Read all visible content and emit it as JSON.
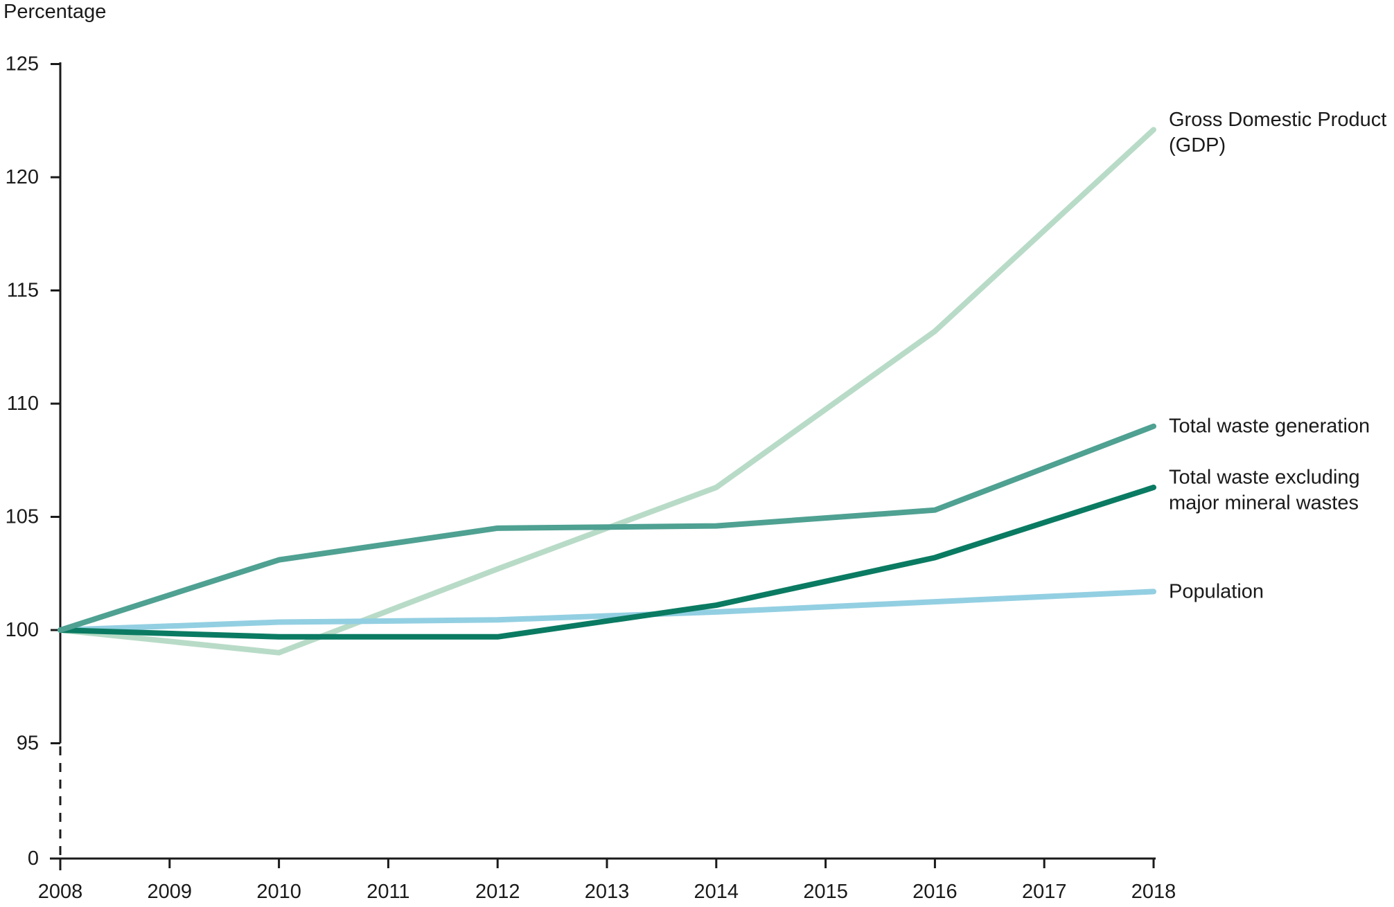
{
  "page": {
    "y_axis_title": "Percentage"
  },
  "chart_data": {
    "type": "line",
    "title": "Percentage",
    "xlabel": "",
    "ylabel": "Percentage",
    "x": [
      2008,
      2010,
      2012,
      2014,
      2016,
      2018
    ],
    "x_axis_ticks": [
      2008,
      2009,
      2010,
      2011,
      2012,
      2013,
      2014,
      2015,
      2016,
      2017,
      2018
    ],
    "y_axis_ticks": [
      125,
      120,
      115,
      110,
      105,
      100,
      95,
      0
    ],
    "y_axis_shown_range": [
      95,
      125
    ],
    "y_axis_break_below": 95,
    "grid": false,
    "legend_position": "right of line ends",
    "series": [
      {
        "name": "Gross Domestic Product (GDP)",
        "label_lines": [
          "Gross Domestic Product",
          "(GDP)"
        ],
        "color": "#b8dbc7",
        "values": [
          100,
          99,
          102.7,
          106.3,
          113.2,
          122.1
        ]
      },
      {
        "name": "Total waste generation",
        "label_lines": [
          "Total waste generation"
        ],
        "color": "#4fa192",
        "values": [
          100,
          103.1,
          104.5,
          104.6,
          105.3,
          109
        ]
      },
      {
        "name": "Total waste excluding major mineral wastes",
        "label_lines": [
          "Total waste excluding",
          "major mineral wastes"
        ],
        "color": "#0a7b62",
        "values": [
          100,
          99.7,
          99.7,
          101.1,
          103.2,
          106.3
        ]
      },
      {
        "name": "Population",
        "label_lines": [
          "Population"
        ],
        "color": "#93cfe2",
        "values": [
          100,
          100.35,
          100.45,
          100.8,
          101.25,
          101.7
        ]
      }
    ],
    "colors": {
      "axis": "#1a1a1a",
      "text": "#1a1a1a"
    }
  }
}
